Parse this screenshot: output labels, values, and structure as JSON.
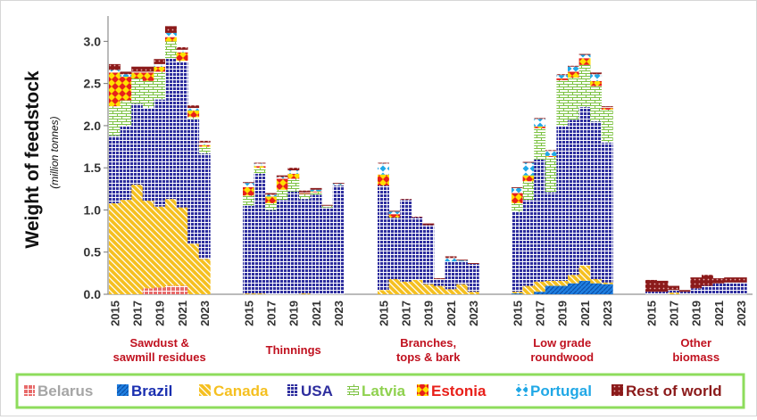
{
  "chart_data": {
    "type": "bar",
    "stacked": true,
    "ylabel": "Weight of feedstock",
    "ylabel_unit": "(million tonnes)",
    "ylim": [
      0,
      3.3
    ],
    "yticks": [
      "0.0",
      "0.5",
      "1.0",
      "1.5",
      "2.0",
      "2.5",
      "3.0"
    ],
    "xtick_labels": [
      "2015",
      "2017",
      "2019",
      "2021",
      "2023"
    ],
    "years": [
      2015,
      2016,
      2017,
      2018,
      2019,
      2020,
      2021,
      2022,
      2023
    ],
    "grid": false,
    "legend_position": "bottom",
    "series": [
      {
        "name": "Belarus",
        "color": "#e05a5a"
      },
      {
        "name": "Brazil",
        "color": "#1f7fe0"
      },
      {
        "name": "Canada",
        "color": "#f5c021"
      },
      {
        "name": "USA",
        "color": "#2e2e9e"
      },
      {
        "name": "Latvia",
        "color": "#8fd14f"
      },
      {
        "name": "Estonia",
        "color": "#e8201a"
      },
      {
        "name": "Portugal",
        "color": "#21a8e6"
      },
      {
        "name": "Rest of world",
        "color": "#8b1a1a"
      }
    ],
    "groups": [
      {
        "label": "Sawdust & sawmill residues",
        "label_lines": [
          "Sawdust &",
          "sawmill residues"
        ],
        "values": {
          "Belarus": [
            0,
            0,
            0,
            0.07,
            0.08,
            0.1,
            0.1,
            0,
            0
          ],
          "Brazil": [
            0,
            0,
            0,
            0,
            0,
            0,
            0,
            0,
            0
          ],
          "Canada": [
            1.08,
            1.12,
            1.3,
            1.04,
            0.96,
            1.03,
            0.93,
            0.6,
            0.42
          ],
          "USA": [
            0.8,
            0.88,
            0.96,
            1.1,
            1.27,
            1.67,
            1.72,
            1.48,
            1.25
          ],
          "Latvia": [
            0.35,
            0.3,
            0.3,
            0.32,
            0.33,
            0.2,
            0.02,
            0.02,
            0.08
          ],
          "Estonia": [
            0.4,
            0.28,
            0.07,
            0.1,
            0.06,
            0.05,
            0.1,
            0.08,
            0.02
          ],
          "Portugal": [
            0.03,
            0.03,
            0.01,
            0.01,
            0.03,
            0.05,
            0.03,
            0.03,
            0.03
          ],
          "Rest of world": [
            0.07,
            0.03,
            0.06,
            0.06,
            0.06,
            0.08,
            0.03,
            0.03,
            0.02
          ]
        }
      },
      {
        "label": "Thinnings",
        "label_lines": [
          "Thinnings"
        ],
        "values": {
          "Belarus": [
            0,
            0,
            0,
            0,
            0,
            0,
            0,
            0,
            0
          ],
          "Brazil": [
            0,
            0,
            0,
            0,
            0,
            0,
            0,
            0,
            0
          ],
          "Canada": [
            0.01,
            0.01,
            0,
            0,
            0,
            0.01,
            0,
            0,
            0
          ],
          "USA": [
            1.04,
            1.42,
            1.0,
            1.12,
            1.22,
            1.12,
            1.18,
            1.03,
            1.29
          ],
          "Latvia": [
            0.12,
            0.07,
            0.08,
            0.12,
            0.15,
            0.06,
            0.03,
            0.02,
            0.01
          ],
          "Estonia": [
            0.1,
            0.02,
            0.08,
            0.13,
            0.06,
            0.01,
            0.01,
            0,
            0
          ],
          "Portugal": [
            0.05,
            0.03,
            0.02,
            0.02,
            0.04,
            0.01,
            0.02,
            0,
            0.01
          ],
          "Rest of world": [
            0.01,
            0.01,
            0.02,
            0.02,
            0.03,
            0.02,
            0.02,
            0.01,
            0.01
          ]
        }
      },
      {
        "label": "Branches, tops & bark",
        "label_lines": [
          "Branches,",
          "tops & bark"
        ],
        "values": {
          "Belarus": [
            0,
            0,
            0,
            0,
            0,
            0,
            0,
            0,
            0
          ],
          "Brazil": [
            0,
            0,
            0,
            0,
            0,
            0,
            0,
            0,
            0
          ],
          "Canada": [
            0.05,
            0.18,
            0.15,
            0.17,
            0.12,
            0.1,
            0.06,
            0.12,
            0.03
          ],
          "USA": [
            1.24,
            0.73,
            0.97,
            0.74,
            0.7,
            0.08,
            0.33,
            0.27,
            0.33
          ],
          "Latvia": [
            0,
            0,
            0,
            0,
            0,
            0,
            0,
            0,
            0
          ],
          "Estonia": [
            0.13,
            0.04,
            0,
            0,
            0,
            0,
            0,
            0,
            0
          ],
          "Portugal": [
            0.13,
            0.03,
            0,
            0,
            0,
            0,
            0.04,
            0.01,
            0
          ],
          "Rest of world": [
            0.01,
            0.01,
            0.01,
            0.01,
            0.02,
            0.01,
            0.02,
            0.01,
            0.01
          ]
        }
      },
      {
        "label": "Low grade roundwood",
        "label_lines": [
          "Low grade",
          "roundwood"
        ],
        "values": {
          "Belarus": [
            0,
            0,
            0,
            0,
            0,
            0,
            0,
            0,
            0
          ],
          "Brazil": [
            0.01,
            0,
            0.03,
            0.1,
            0.1,
            0.13,
            0.16,
            0.13,
            0.12
          ],
          "Canada": [
            0.02,
            0.1,
            0.12,
            0.06,
            0.06,
            0.1,
            0.18,
            0.05,
            0.02
          ],
          "USA": [
            0.95,
            1.02,
            1.45,
            1.05,
            1.84,
            1.84,
            1.88,
            1.87,
            1.66
          ],
          "Latvia": [
            0.1,
            0.22,
            0.37,
            0.42,
            0.54,
            0.5,
            0.5,
            0.42,
            0.39
          ],
          "Estonia": [
            0.12,
            0.07,
            0.02,
            0.01,
            0.02,
            0.07,
            0.08,
            0.06,
            0.02
          ],
          "Portugal": [
            0.06,
            0.15,
            0.09,
            0.06,
            0.04,
            0.06,
            0.04,
            0.08,
            0.01
          ],
          "Rest of world": [
            0.01,
            0.01,
            0.01,
            0.01,
            0.01,
            0.01,
            0.01,
            0.02,
            0.01
          ]
        }
      },
      {
        "label": "Other biomass",
        "label_lines": [
          "Other",
          "biomass"
        ],
        "values": {
          "Belarus": [
            0,
            0,
            0,
            0,
            0,
            0,
            0,
            0,
            0
          ],
          "Brazil": [
            0,
            0,
            0,
            0,
            0,
            0,
            0,
            0,
            0
          ],
          "Canada": [
            0,
            0,
            0.02,
            0,
            0,
            0,
            0,
            0,
            0
          ],
          "USA": [
            0.03,
            0.03,
            0.03,
            0.03,
            0.07,
            0.1,
            0.13,
            0.14,
            0.14
          ],
          "Latvia": [
            0,
            0,
            0,
            0,
            0,
            0,
            0,
            0,
            0
          ],
          "Estonia": [
            0,
            0,
            0,
            0,
            0,
            0,
            0,
            0,
            0
          ],
          "Portugal": [
            0,
            0,
            0,
            0,
            0,
            0,
            0,
            0,
            0
          ],
          "Rest of world": [
            0.14,
            0.13,
            0.05,
            0.02,
            0.13,
            0.13,
            0.06,
            0.06,
            0.06
          ]
        }
      }
    ]
  }
}
